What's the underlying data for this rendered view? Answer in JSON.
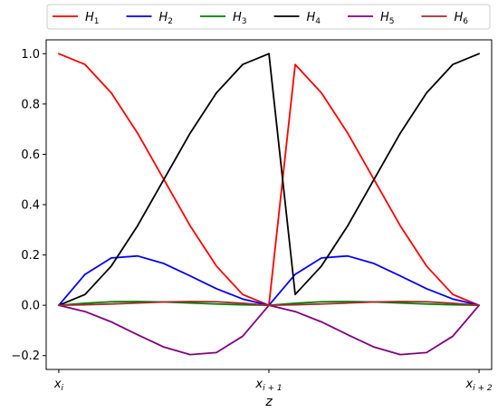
{
  "chart_data": {
    "type": "line",
    "title": "",
    "xlabel": "z",
    "ylabel": "",
    "x_ticks": [
      {
        "pos": 0,
        "base": "x",
        "sub": "i"
      },
      {
        "pos": 1,
        "base": "x",
        "sub": "i + 1"
      },
      {
        "pos": 2,
        "base": "x",
        "sub": "i + 2"
      }
    ],
    "y_ticks": [
      "−0.2",
      "0.0",
      "0.2",
      "0.4",
      "0.6",
      "0.8",
      "1.0"
    ],
    "xlim": [
      -0.06,
      2.06
    ],
    "ylim": [
      -0.255,
      1.055
    ],
    "grid": false,
    "legend_position": "top",
    "legend_columns": 6,
    "series": [
      {
        "name": "H",
        "sub": "1",
        "color": "#ff0000",
        "x": [
          0,
          0.125,
          0.25,
          0.375,
          0.5,
          0.625,
          0.75,
          0.875,
          1,
          1.125,
          1.25,
          1.375,
          1.5,
          1.625,
          1.75,
          1.875,
          2
        ],
        "y": [
          1.0,
          0.957,
          0.844,
          0.684,
          0.5,
          0.316,
          0.156,
          0.043,
          0.0,
          0.957,
          0.844,
          0.684,
          0.5,
          0.316,
          0.156,
          0.043,
          0.0
        ]
      },
      {
        "name": "H",
        "sub": "2",
        "color": "#0000ff",
        "x": [
          0,
          0.125,
          0.25,
          0.375,
          0.5,
          0.625,
          0.75,
          0.875,
          1,
          1.125,
          1.25,
          1.375,
          1.5,
          1.625,
          1.75,
          1.875,
          2
        ],
        "y": [
          0.0,
          0.123,
          0.188,
          0.196,
          0.166,
          0.117,
          0.066,
          0.025,
          0.0,
          0.123,
          0.188,
          0.196,
          0.166,
          0.117,
          0.066,
          0.025,
          0.0
        ]
      },
      {
        "name": "H",
        "sub": "3",
        "color": "#008000",
        "x": [
          0,
          0.125,
          0.25,
          0.375,
          0.5,
          0.625,
          0.75,
          0.875,
          1,
          1.125,
          1.25,
          1.375,
          1.5,
          1.625,
          1.75,
          1.875,
          2
        ],
        "y": [
          0.0,
          0.008,
          0.014,
          0.015,
          0.013,
          0.009,
          0.005,
          0.002,
          0.0,
          0.008,
          0.014,
          0.015,
          0.013,
          0.009,
          0.005,
          0.002,
          0.0
        ]
      },
      {
        "name": "H",
        "sub": "4",
        "color": "#000000",
        "x": [
          0,
          0.125,
          0.25,
          0.375,
          0.5,
          0.625,
          0.75,
          0.875,
          1,
          1.125,
          1.25,
          1.375,
          1.5,
          1.625,
          1.75,
          1.875,
          2
        ],
        "y": [
          0.0,
          0.043,
          0.156,
          0.316,
          0.5,
          0.684,
          0.844,
          0.957,
          1.0,
          0.043,
          0.156,
          0.316,
          0.5,
          0.684,
          0.844,
          0.957,
          1.0
        ]
      },
      {
        "name": "H",
        "sub": "5",
        "color": "#800080",
        "x": [
          0,
          0.125,
          0.25,
          0.375,
          0.5,
          0.625,
          0.75,
          0.875,
          1,
          1.125,
          1.25,
          1.375,
          1.5,
          1.625,
          1.75,
          1.875,
          2
        ],
        "y": [
          0.0,
          -0.025,
          -0.066,
          -0.117,
          -0.166,
          -0.196,
          -0.188,
          -0.123,
          0.0,
          -0.025,
          -0.066,
          -0.117,
          -0.166,
          -0.196,
          -0.188,
          -0.123,
          0.0
        ]
      },
      {
        "name": "H",
        "sub": "6",
        "color": "#a52a2a",
        "x": [
          0,
          0.125,
          0.25,
          0.375,
          0.5,
          0.625,
          0.75,
          0.875,
          1,
          1.125,
          1.25,
          1.375,
          1.5,
          1.625,
          1.75,
          1.875,
          2
        ],
        "y": [
          0.0,
          0.002,
          0.005,
          0.009,
          0.013,
          0.015,
          0.014,
          0.008,
          0.0,
          0.002,
          0.005,
          0.009,
          0.013,
          0.015,
          0.014,
          0.008,
          0.0
        ]
      }
    ]
  }
}
